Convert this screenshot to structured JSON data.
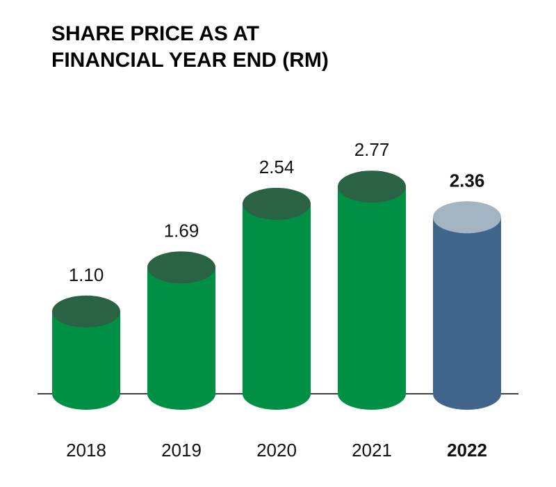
{
  "title": {
    "line1": "SHARE PRICE AS AT",
    "line2": "FINANCIAL YEAR END (RM)"
  },
  "chart_data": {
    "type": "bar",
    "style": "cylinder",
    "categories": [
      "2018",
      "2019",
      "2020",
      "2021",
      "2022"
    ],
    "values": [
      1.1,
      1.69,
      2.54,
      2.77,
      2.36
    ],
    "value_labels": [
      "1.10",
      "1.69",
      "2.54",
      "2.77",
      "2.36"
    ],
    "highlight_category": "2022",
    "title": "SHARE PRICE AS AT FINANCIAL YEAR END (RM)",
    "xlabel": "",
    "ylabel": "",
    "ylim": [
      0,
      3
    ],
    "grid": false,
    "legend": "none",
    "colors": {
      "bar_body": "#009045",
      "bar_top": "#2a6343",
      "highlight_body": "#40658a",
      "highlight_top": "#a3b5c2",
      "baseline": "#000000",
      "text": "#111111"
    }
  }
}
